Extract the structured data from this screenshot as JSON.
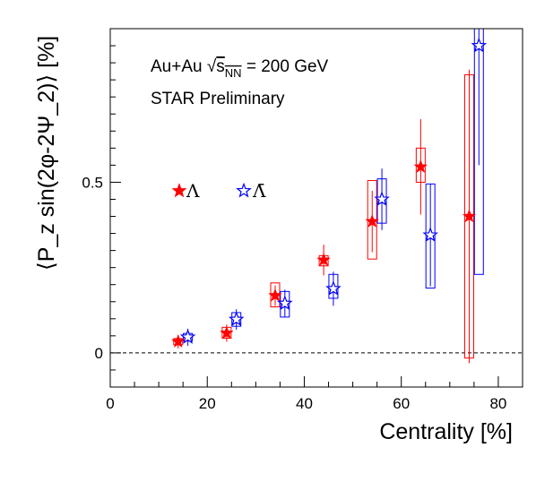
{
  "chart_data": {
    "type": "scatter",
    "xlabel": "Centrality [%]",
    "ylabel": "⟨P_z sin(2φ-2Ψ_2)⟩ [%]",
    "xlim": [
      0,
      85
    ],
    "ylim": [
      -0.1,
      0.95
    ],
    "x_ticks": [
      0,
      20,
      40,
      60,
      80
    ],
    "y_ticks": [
      0,
      0.5
    ],
    "x_tick_labels": [
      "0",
      "20",
      "40",
      "60",
      "80"
    ],
    "y_tick_labels": [
      "0",
      "0.5"
    ],
    "reference_line": {
      "y": 0,
      "style": "dashed"
    },
    "annotations": {
      "system_prefix": "Au+Au ",
      "sqrt_symbol": "√",
      "energy_var": "s",
      "energy_sub": "NN",
      "energy_value": " = 200 GeV",
      "preliminary": "STAR Preliminary"
    },
    "series": [
      {
        "name": "Λ",
        "marker": "filled-star",
        "color": "#ff0000",
        "points": [
          {
            "x": 14,
            "y": 0.033,
            "stat": 0.02,
            "sys_lo": 0.024,
            "sys_hi": 0.042
          },
          {
            "x": 24,
            "y": 0.058,
            "stat": 0.025,
            "sys_lo": 0.043,
            "sys_hi": 0.075
          },
          {
            "x": 34,
            "y": 0.168,
            "stat": 0.03,
            "sys_lo": 0.135,
            "sys_hi": 0.205
          },
          {
            "x": 44,
            "y": 0.272,
            "stat": 0.045,
            "sys_lo": 0.255,
            "sys_hi": 0.285
          },
          {
            "x": 54,
            "y": 0.385,
            "stat": 0.09,
            "sys_lo": 0.275,
            "sys_hi": 0.505
          },
          {
            "x": 64,
            "y": 0.545,
            "stat": 0.14,
            "sys_lo": 0.5,
            "sys_hi": 0.6
          },
          {
            "x": 74,
            "y": 0.4,
            "stat": 0.43,
            "sys_lo": -0.015,
            "sys_hi": 0.815
          }
        ]
      },
      {
        "name": "Λ̄",
        "marker": "open-star",
        "color": "#0000ff",
        "points": [
          {
            "x": 16,
            "y": 0.046,
            "stat": 0.025,
            "sys_lo": 0.035,
            "sys_hi": 0.057
          },
          {
            "x": 26,
            "y": 0.098,
            "stat": 0.03,
            "sys_lo": 0.078,
            "sys_hi": 0.118
          },
          {
            "x": 36,
            "y": 0.145,
            "stat": 0.04,
            "sys_lo": 0.105,
            "sys_hi": 0.18
          },
          {
            "x": 46,
            "y": 0.188,
            "stat": 0.05,
            "sys_lo": 0.16,
            "sys_hi": 0.23
          },
          {
            "x": 56,
            "y": 0.45,
            "stat": 0.09,
            "sys_lo": 0.38,
            "sys_hi": 0.51
          },
          {
            "x": 66,
            "y": 0.345,
            "stat": 0.15,
            "sys_lo": 0.19,
            "sys_hi": 0.495
          },
          {
            "x": 76,
            "y": 0.9,
            "stat": 0.35,
            "sys_lo": 0.23,
            "sys_hi": 0.95
          }
        ]
      }
    ],
    "legend": {
      "placement": "left-middle"
    }
  }
}
